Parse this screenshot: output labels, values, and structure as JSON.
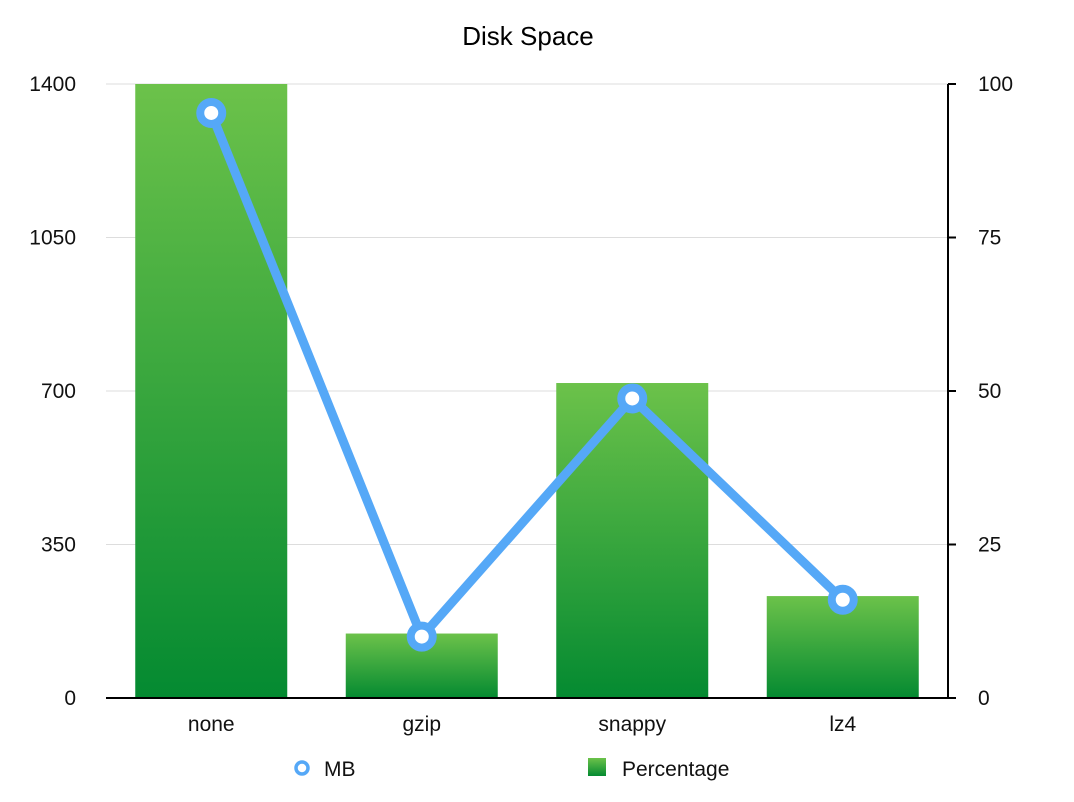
{
  "chart_data": {
    "type": "bar",
    "title": "Disk Space",
    "categories": [
      "none",
      "gzip",
      "snappy",
      "lz4"
    ],
    "series": [
      {
        "name": "Percentage",
        "type": "bar",
        "axis": "right",
        "values": [
          100,
          10.5,
          51.3,
          16.6
        ]
      },
      {
        "name": "MB",
        "type": "line",
        "axis": "left",
        "values": [
          1334,
          140,
          683,
          224
        ]
      }
    ],
    "y_left": {
      "range": [
        0,
        1400
      ],
      "ticks": [
        0,
        350,
        700,
        1050,
        1400
      ]
    },
    "y_right": {
      "range": [
        0,
        100
      ],
      "ticks": [
        0,
        25,
        50,
        75,
        100
      ]
    },
    "grid": true,
    "legend_position": "bottom",
    "colors": {
      "bar_top": "#6cc24a",
      "bar_bottom": "#048a31",
      "line": "#55a8f7"
    }
  }
}
